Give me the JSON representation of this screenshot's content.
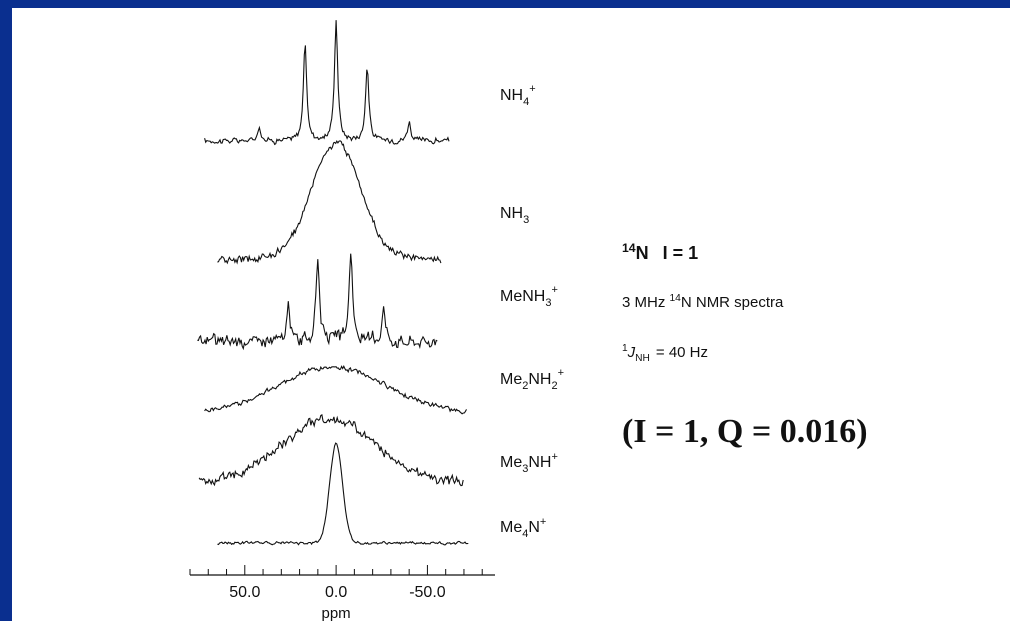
{
  "chart_data": {
    "type": "line",
    "xlabel": "ppm",
    "x_ticks": [
      "50.0",
      "0.0",
      "-50.0"
    ],
    "x_tick_values": [
      50,
      0,
      -50
    ],
    "xlim": [
      80,
      -87
    ],
    "x_reversed": true,
    "series": [
      {
        "name": "NH4+",
        "label_main": "NH",
        "label_sub": "4",
        "label_sup": "+",
        "profile": "multiplet",
        "xrange": [
          72,
          -62
        ],
        "peaks": [
          {
            "ppm": 42,
            "height": 0.12
          },
          {
            "ppm": 17,
            "height": 0.8
          },
          {
            "ppm": 0,
            "height": 1.0
          },
          {
            "ppm": -17,
            "height": 0.62
          },
          {
            "ppm": -40,
            "height": 0.16
          }
        ],
        "noise": 0.035
      },
      {
        "name": "NH3",
        "label_main": "NH",
        "label_sub": "3",
        "label_sup": "",
        "profile": "broad",
        "xrange": [
          65,
          -58
        ],
        "components": [
          {
            "ppm": 7,
            "height": 0.55,
            "width": 9
          },
          {
            "ppm": -7,
            "height": 0.55,
            "width": 9
          },
          {
            "ppm": 0,
            "height": 0.35,
            "width": 18
          }
        ],
        "noise": 0.05
      },
      {
        "name": "MeNH3+",
        "label_main": "MeNH",
        "label_sub": "3",
        "label_sup": "+",
        "profile": "multiplet",
        "xrange": [
          76,
          -56
        ],
        "peaks": [
          {
            "ppm": 26,
            "height": 0.35
          },
          {
            "ppm": 10,
            "height": 0.85
          },
          {
            "ppm": -8,
            "height": 0.9
          },
          {
            "ppm": -26,
            "height": 0.35
          }
        ],
        "noise": 0.09
      },
      {
        "name": "Me2NH2+",
        "label_main": "Me",
        "label_mid": "2",
        "label_main2": "NH",
        "label_sub": "2",
        "label_sup": "+",
        "profile": "broad",
        "xrange": [
          72,
          -72
        ],
        "components": [
          {
            "ppm": 2,
            "height": 0.72,
            "width": 30
          }
        ],
        "noise": 0.05
      },
      {
        "name": "Me3NH+",
        "label_main": "Me",
        "label_mid": "3",
        "label_main2": "NH",
        "label_sub": "",
        "label_sup": "+",
        "profile": "broad",
        "xrange": [
          75,
          -70
        ],
        "components": [
          {
            "ppm": 4,
            "height": 0.75,
            "width": 26
          }
        ],
        "noise": 0.08
      },
      {
        "name": "Me4N+",
        "label_main": "Me",
        "label_mid": "4",
        "label_main2": "N",
        "label_sub": "",
        "label_sup": "+",
        "profile": "single",
        "xrange": [
          65,
          -73
        ],
        "components": [
          {
            "ppm": 0,
            "height": 1.0,
            "width": 3.5
          }
        ],
        "noise": 0.02
      }
    ]
  },
  "info": {
    "nucleus_sup": "14",
    "nucleus_symbol": "N",
    "spin_text": "I = 1",
    "freq_prefix": "3 MHz ",
    "freq_sup": "14",
    "freq_suffix": "N NMR spectra",
    "coupling_sup": "1",
    "coupling_main": "J",
    "coupling_sub": "NH",
    "coupling_value": "=  40 Hz",
    "quadrupole_text": "(I = 1, Q = 0.016)"
  }
}
